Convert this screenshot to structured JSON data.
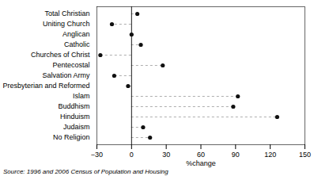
{
  "chart_data": {
    "type": "lollipop",
    "orientation": "horizontal",
    "categories": [
      "Total Christian",
      "Uniting Church",
      "Anglican",
      "Catholic",
      "Churches of Christ",
      "Pentecostal",
      "Salvation Army",
      "Presbyterian and Reformed",
      "Islam",
      "Buddhism",
      "Hinduism",
      "Judaism",
      "No Religion"
    ],
    "values": [
      5,
      -17,
      0,
      8,
      -27,
      27,
      -15,
      -3,
      92,
      88,
      126,
      10,
      16
    ],
    "xlim": [
      -30,
      150
    ],
    "xticks": [
      -30,
      0,
      30,
      60,
      90,
      120,
      150
    ],
    "xlabel": "%change",
    "caption": "Source:  1996 and 2006 Census of Population and Housing",
    "color": "#111111",
    "line_style": "dashed",
    "marker": "circle",
    "grid": false
  }
}
